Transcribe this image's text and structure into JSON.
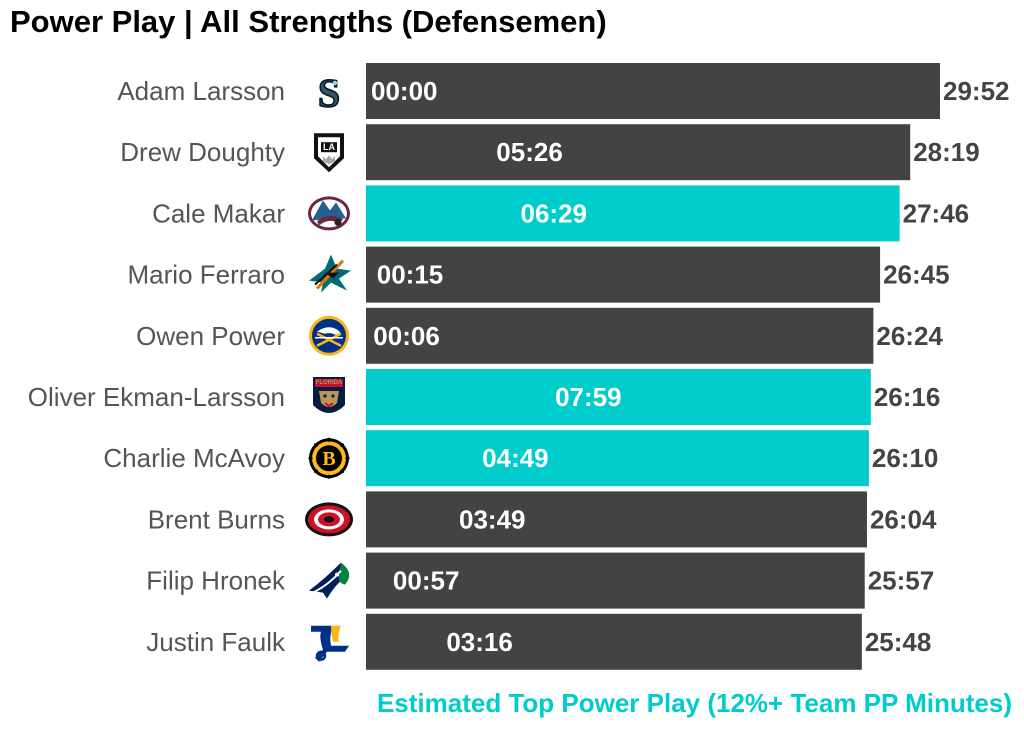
{
  "chart_data": {
    "type": "bar",
    "orientation": "horizontal",
    "title": "Power Play | All Strengths (Defensemen)",
    "subtitle": "Estimated Top Power Play (12%+ Team PP Minutes)",
    "grid": false,
    "legend": "none",
    "colors": {
      "default_bar": "#434343",
      "highlight_bar": "#00CCCC",
      "subtitle": "#00CCCC",
      "player_label": "#555555",
      "total_label": "#444444",
      "inner_label": "#ffffff"
    },
    "categories": [
      "Adam Larsson",
      "Drew Doughty",
      "Cale Makar",
      "Mario Ferraro",
      "Owen Power",
      "Oliver Ekman-Larsson",
      "Charlie McAvoy",
      "Brent Burns",
      "Filip Hronek",
      "Justin Faulk"
    ],
    "teams": [
      "seattle-kraken",
      "los-angeles-kings",
      "colorado-avalanche",
      "san-jose-sharks",
      "buffalo-sabres",
      "florida-panthers",
      "boston-bruins",
      "carolina-hurricanes",
      "vancouver-canucks",
      "st-louis-blues"
    ],
    "total_labels": [
      "29:52",
      "28:19",
      "27:46",
      "26:45",
      "26:24",
      "26:16",
      "26:10",
      "26:04",
      "25:57",
      "25:48"
    ],
    "pp_labels": [
      "00:00",
      "05:26",
      "06:29",
      "00:15",
      "00:06",
      "07:59",
      "04:49",
      "03:49",
      "00:57",
      "03:16"
    ],
    "total_minutes": [
      29.867,
      28.317,
      27.767,
      26.75,
      26.4,
      26.267,
      26.167,
      26.067,
      25.95,
      25.8
    ],
    "pp_minutes": [
      0.0,
      5.433,
      6.483,
      0.25,
      0.1,
      7.983,
      4.817,
      3.817,
      0.95,
      3.267
    ],
    "highlight": [
      false,
      false,
      true,
      false,
      false,
      true,
      true,
      false,
      false,
      false
    ]
  }
}
